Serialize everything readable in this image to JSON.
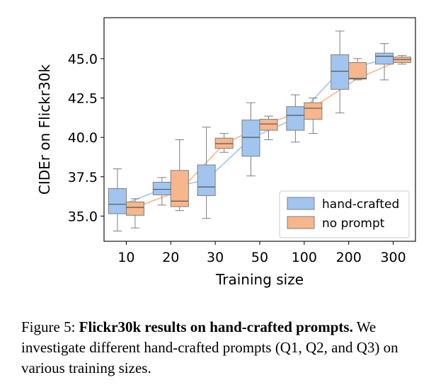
{
  "colors": {
    "hand_crafted": "#a1c5ef",
    "no_prompt": "#f7b68c",
    "hand_crafted_line": "#a1c5ef",
    "no_prompt_line": "#f7b68c",
    "whisker": "#7f7f7f",
    "median": "#555555"
  },
  "chart_data": {
    "type": "box",
    "xlabel": "Training size",
    "ylabel": "CIDEr on Flickr30k",
    "categories": [
      "10",
      "20",
      "30",
      "50",
      "100",
      "200",
      "300"
    ],
    "ylim": [
      33.4,
      47.6
    ],
    "yticks": [
      35.0,
      37.5,
      40.0,
      42.5,
      45.0
    ],
    "ytick_labels": [
      "35.0",
      "37.5",
      "40.0",
      "42.5",
      "45.0"
    ],
    "grid": false,
    "legend_position": "lower right",
    "series": [
      {
        "name": "hand-crafted",
        "color_key": "hand_crafted",
        "boxes": [
          {
            "min": 34.05,
            "q1": 35.15,
            "median": 35.75,
            "q3": 36.75,
            "max": 38.0
          },
          {
            "min": 35.7,
            "q1": 36.35,
            "median": 36.7,
            "q3": 37.15,
            "max": 37.45
          },
          {
            "min": 34.85,
            "q1": 36.3,
            "median": 36.85,
            "q3": 38.25,
            "max": 40.65
          },
          {
            "min": 37.55,
            "q1": 38.8,
            "median": 40.0,
            "q3": 41.1,
            "max": 42.2
          },
          {
            "min": 39.7,
            "q1": 40.45,
            "median": 41.4,
            "q3": 41.95,
            "max": 42.7
          },
          {
            "min": 41.55,
            "q1": 43.05,
            "median": 44.2,
            "q3": 45.25,
            "max": 46.75
          },
          {
            "min": 43.65,
            "q1": 44.65,
            "median": 45.15,
            "q3": 45.35,
            "max": 45.95
          }
        ],
        "trend": [
          35.6,
          36.7,
          37.3,
          39.95,
          41.2,
          44.2,
          44.95
        ]
      },
      {
        "name": "no prompt",
        "color_key": "no_prompt",
        "boxes": [
          {
            "min": 34.25,
            "q1": 35.05,
            "median": 35.55,
            "q3": 35.9,
            "max": 36.1
          },
          {
            "min": 35.35,
            "q1": 35.6,
            "median": 35.95,
            "q3": 37.9,
            "max": 39.85
          },
          {
            "min": 39.05,
            "q1": 39.3,
            "median": 39.6,
            "q3": 39.95,
            "max": 40.25
          },
          {
            "min": 39.85,
            "q1": 40.45,
            "median": 40.85,
            "q3": 41.15,
            "max": 41.35
          },
          {
            "min": 40.25,
            "q1": 41.15,
            "median": 41.85,
            "q3": 42.2,
            "max": 42.5
          },
          {
            "min": 43.65,
            "q1": 43.7,
            "median": 43.75,
            "q3": 44.75,
            "max": 45.0
          },
          {
            "min": 44.65,
            "q1": 44.75,
            "median": 44.95,
            "q3": 45.1,
            "max": 45.2
          }
        ],
        "trend": [
          35.55,
          36.6,
          39.6,
          40.9,
          41.9,
          43.75,
          44.95
        ]
      }
    ]
  },
  "caption": {
    "prefix": "Figure 5: ",
    "bold": "Flickr30k results on hand-crafted prompts.",
    "body": " We investigate different hand-crafted prompts (Q1, Q2, and Q3) on various training sizes."
  }
}
